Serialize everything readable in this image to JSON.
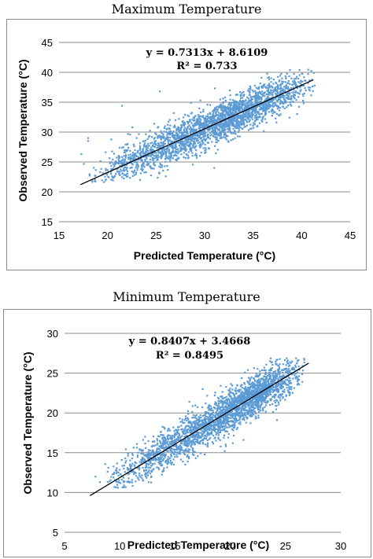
{
  "chart_data": [
    {
      "type": "scatter",
      "title": "Maximum Temperature",
      "xlabel": "Predicted Temperature  (°C)",
      "ylabel": "Observed Temperature (°C)",
      "xlim": [
        15,
        45
      ],
      "ylim": [
        15,
        45
      ],
      "xticks": [
        "15",
        "20",
        "25",
        "30",
        "35",
        "40",
        "45"
      ],
      "yticks": [
        "15",
        "20",
        "25",
        "30",
        "35",
        "40",
        "45"
      ],
      "grid": "horizontal",
      "marker_color": "#5b9bd5",
      "trendline_color": "#000000",
      "trendline": {
        "slope": 0.7313,
        "intercept": 8.6109,
        "x_range": [
          17.2,
          41.2
        ]
      },
      "equation": "y = 0.7313x + 8.6109",
      "r_squared": "R² = 0.733",
      "point_cloud": {
        "n": 2600,
        "x_min": 17.5,
        "x_max": 41.5,
        "x_mode": 33,
        "y_spread": 1.6,
        "y_min": 21.5,
        "y_max": 40.5
      },
      "outliers": [
        [
          18,
          29
        ],
        [
          18,
          28.5
        ],
        [
          17.3,
          26.3
        ],
        [
          21.5,
          34.4
        ],
        [
          23,
          29
        ],
        [
          24.8,
          31.4
        ],
        [
          25.4,
          36.8
        ],
        [
          27,
          32
        ],
        [
          28.6,
          34.9
        ],
        [
          26,
          22.6
        ],
        [
          31,
          24
        ],
        [
          22,
          23
        ]
      ]
    },
    {
      "type": "scatter",
      "title": "Minimum Temperature",
      "xlabel": "Predicted Temperature  (°C)",
      "ylabel": "Observed Temperature (°C)",
      "xlim": [
        5,
        30
      ],
      "ylim": [
        5,
        30
      ],
      "xticks": [
        "5",
        "10",
        "15",
        "20",
        "25",
        "30"
      ],
      "yticks": [
        "5",
        "10",
        "15",
        "20",
        "25",
        "30"
      ],
      "grid": "horizontal",
      "marker_color": "#5b9bd5",
      "trendline_color": "#000000",
      "trendline": {
        "slope": 0.8407,
        "intercept": 3.4668,
        "x_range": [
          7.3,
          27.1
        ]
      },
      "equation": "y = 0.8407x + 3.4668",
      "r_squared": "R² = 0.8495",
      "point_cloud": {
        "n": 2600,
        "x_min": 8,
        "x_max": 27,
        "x_mode": 22.5,
        "y_spread": 1.3,
        "y_min": 10.5,
        "y_max": 27
      },
      "outliers": [
        [
          7.8,
          12
        ],
        [
          8.2,
          11.3
        ],
        [
          9.5,
          12.5
        ],
        [
          10.5,
          14.3
        ],
        [
          11.6,
          13.1
        ],
        [
          13.8,
          13.4
        ],
        [
          16.3,
          21.4
        ],
        [
          17.5,
          23
        ],
        [
          18.6,
          22.2
        ],
        [
          19.5,
          15.2
        ],
        [
          21.2,
          16.6
        ],
        [
          23.6,
          26.5
        ]
      ]
    }
  ]
}
